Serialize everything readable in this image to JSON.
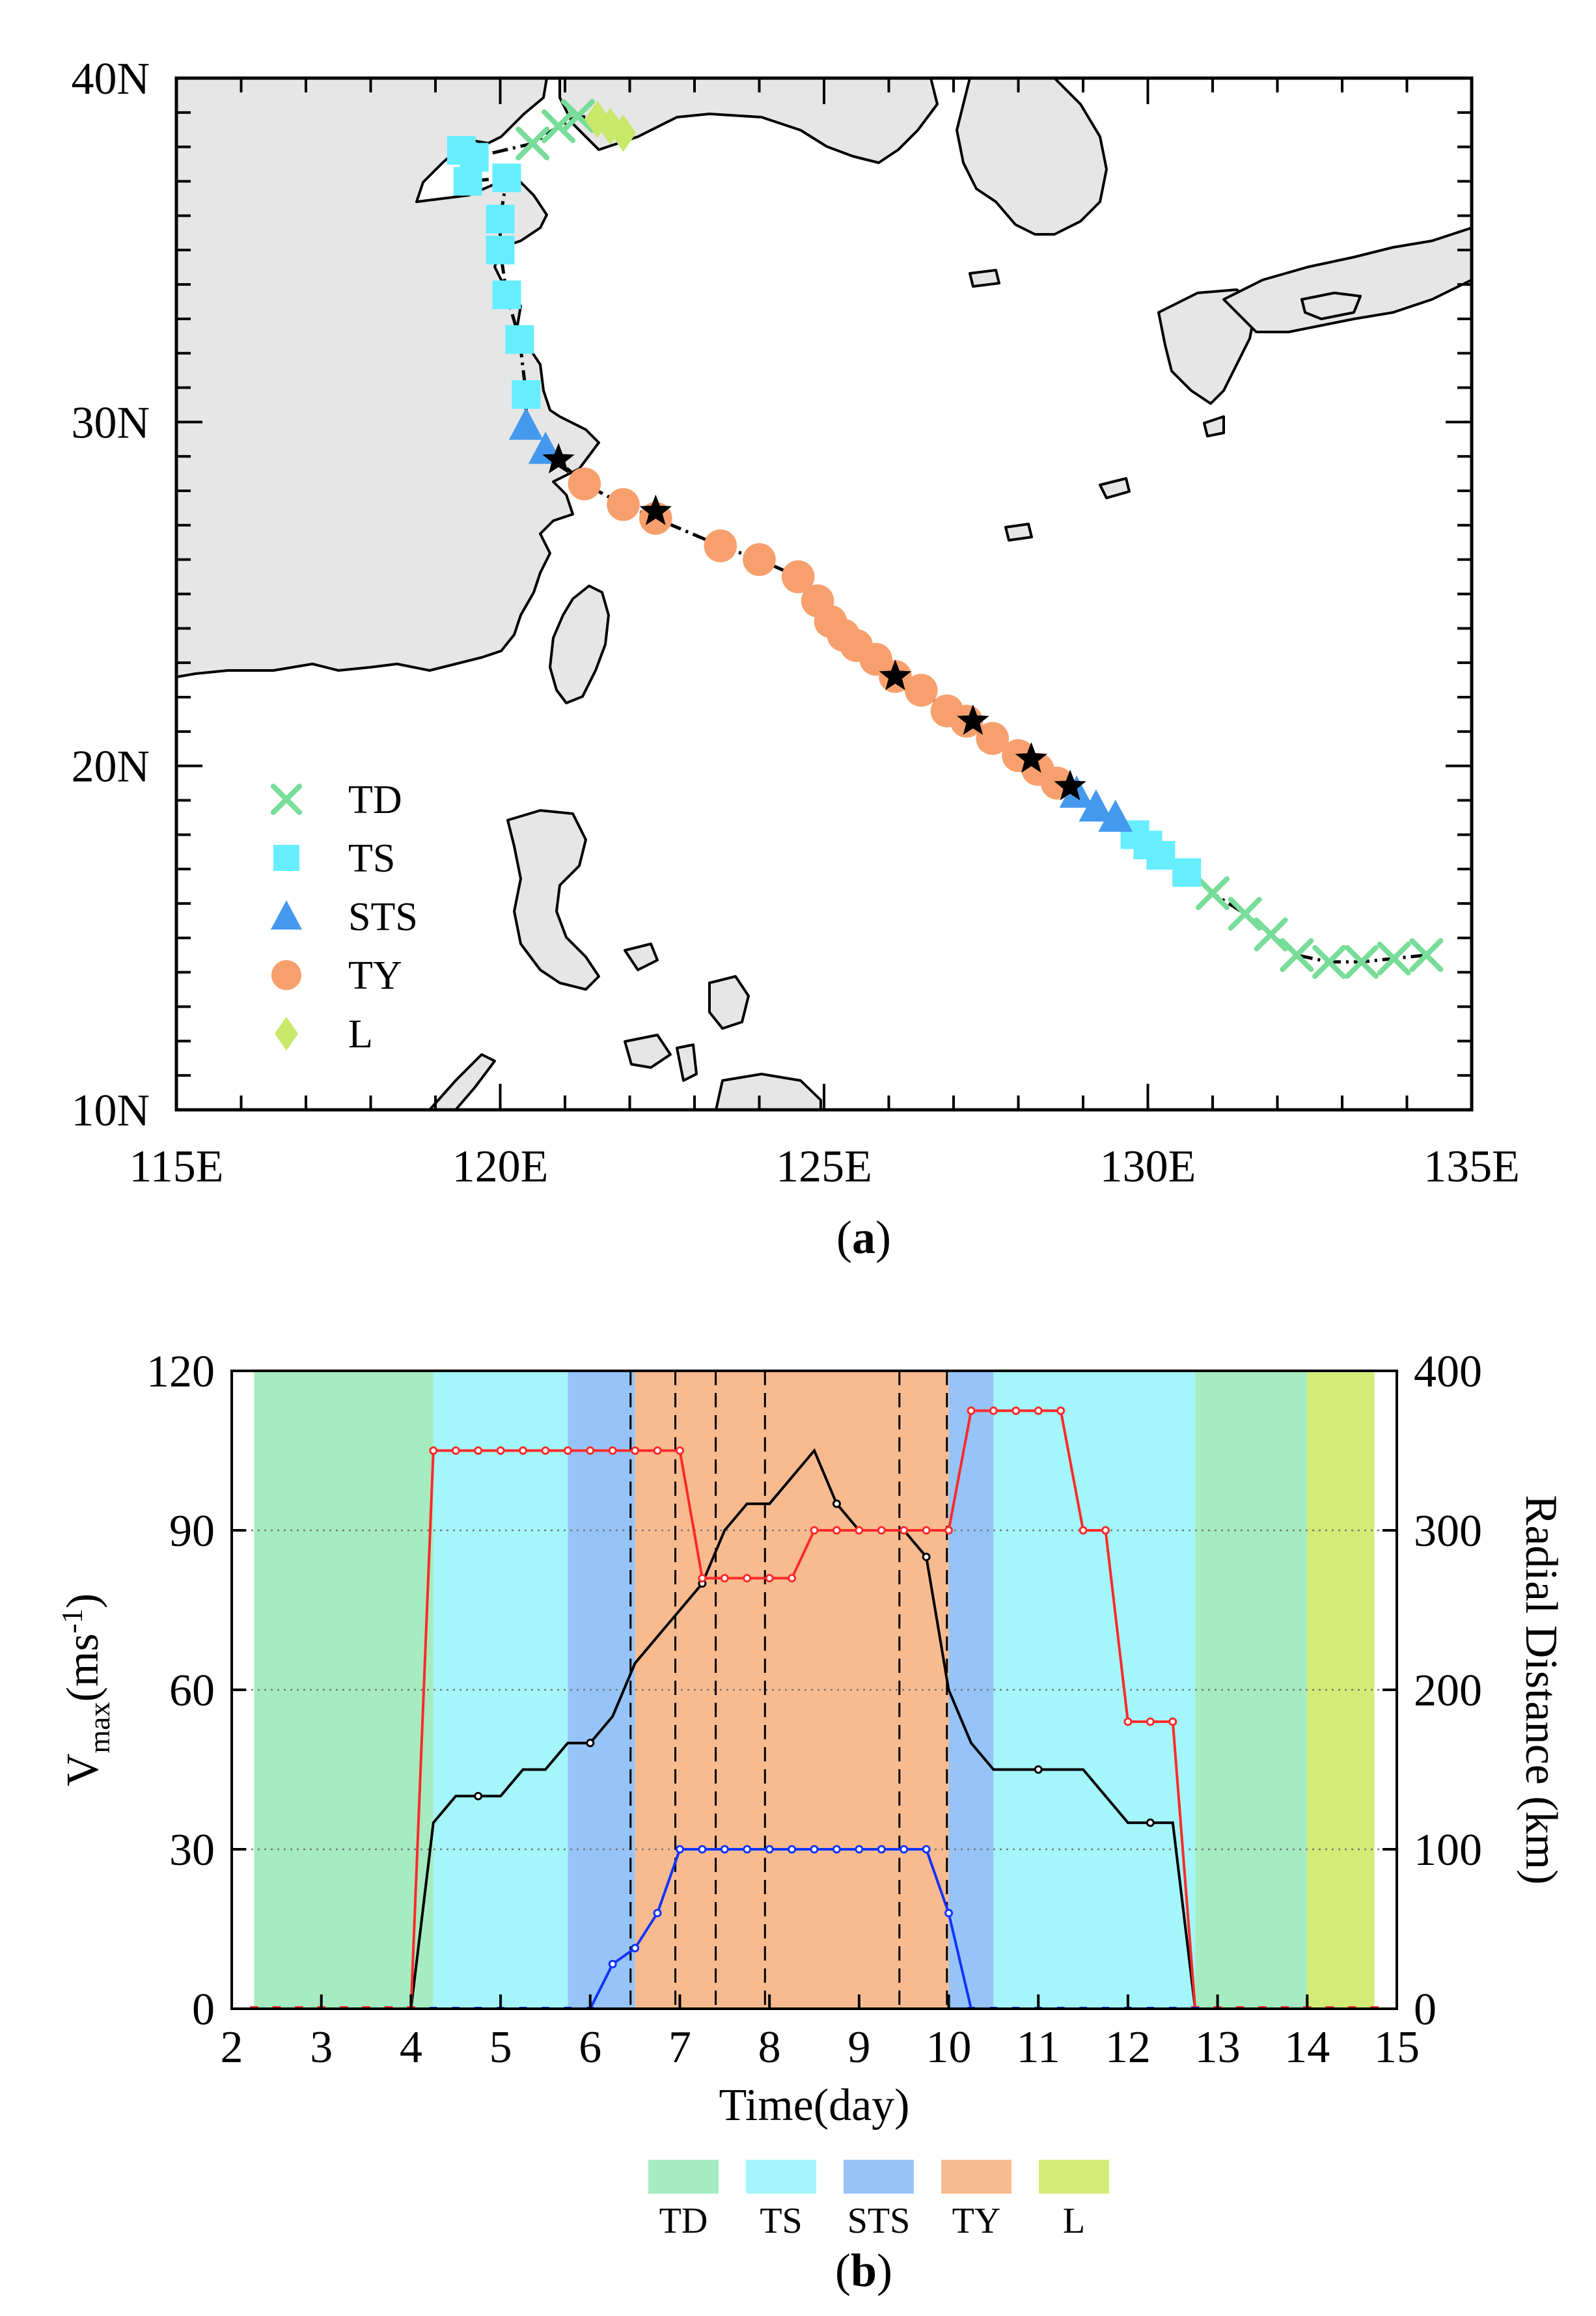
{
  "chart_data": [
    {
      "id": "a",
      "type": "scatter",
      "panel_label": "(a)",
      "panel_letter": "a",
      "title": "",
      "xlabel": "",
      "ylabel": "",
      "xlim": [
        115,
        135
      ],
      "ylim": [
        10,
        40
      ],
      "x_ticks": [
        115,
        120,
        125,
        130,
        135
      ],
      "x_tick_labels": [
        "115E",
        "120E",
        "125E",
        "130E",
        "135E"
      ],
      "y_ticks": [
        10,
        20,
        30,
        40
      ],
      "y_tick_labels": [
        "10N",
        "20N",
        "30N",
        "40N"
      ],
      "grid": false,
      "legend_position": "bottom-left",
      "legend": [
        {
          "label": "TD",
          "marker": "x",
          "color": "#77DD99"
        },
        {
          "label": "TS",
          "marker": "square",
          "color": "#66EEFF"
        },
        {
          "label": "STS",
          "marker": "triangle",
          "color": "#4499EE"
        },
        {
          "label": "TY",
          "marker": "circle",
          "color": "#F7A06E"
        },
        {
          "label": "L",
          "marker": "diamond",
          "color": "#C8E86A"
        }
      ],
      "land_color": "#E6E6E6",
      "track": [
        {
          "lon": 134.3,
          "lat": 14.5,
          "cat": "TD"
        },
        {
          "lon": 133.8,
          "lat": 14.4,
          "cat": "TD"
        },
        {
          "lon": 133.3,
          "lat": 14.3,
          "cat": "TD"
        },
        {
          "lon": 132.8,
          "lat": 14.3,
          "cat": "TD"
        },
        {
          "lon": 132.3,
          "lat": 14.5,
          "cat": "TD"
        },
        {
          "lon": 131.9,
          "lat": 15.1,
          "cat": "TD"
        },
        {
          "lon": 131.5,
          "lat": 15.7,
          "cat": "TD"
        },
        {
          "lon": 131.0,
          "lat": 16.3,
          "cat": "TD"
        },
        {
          "lon": 130.6,
          "lat": 16.9,
          "cat": "TS"
        },
        {
          "lon": 130.2,
          "lat": 17.4,
          "cat": "TS"
        },
        {
          "lon": 130.0,
          "lat": 17.7,
          "cat": "TS"
        },
        {
          "lon": 129.8,
          "lat": 18.0,
          "cat": "TS"
        },
        {
          "lon": 129.5,
          "lat": 18.5,
          "cat": "STS"
        },
        {
          "lon": 129.2,
          "lat": 18.8,
          "cat": "STS"
        },
        {
          "lon": 128.9,
          "lat": 19.2,
          "cat": "STS"
        },
        {
          "lon": 128.6,
          "lat": 19.5,
          "cat": "TY"
        },
        {
          "lon": 128.3,
          "lat": 19.9,
          "cat": "TY"
        },
        {
          "lon": 128.0,
          "lat": 20.3,
          "cat": "TY"
        },
        {
          "lon": 127.6,
          "lat": 20.8,
          "cat": "TY"
        },
        {
          "lon": 127.2,
          "lat": 21.3,
          "cat": "TY"
        },
        {
          "lon": 126.9,
          "lat": 21.6,
          "cat": "TY"
        },
        {
          "lon": 126.5,
          "lat": 22.2,
          "cat": "TY"
        },
        {
          "lon": 126.1,
          "lat": 22.6,
          "cat": "TY"
        },
        {
          "lon": 125.8,
          "lat": 23.1,
          "cat": "TY"
        },
        {
          "lon": 125.5,
          "lat": 23.5,
          "cat": "TY"
        },
        {
          "lon": 125.3,
          "lat": 23.8,
          "cat": "TY"
        },
        {
          "lon": 125.1,
          "lat": 24.2,
          "cat": "TY"
        },
        {
          "lon": 124.9,
          "lat": 24.8,
          "cat": "TY"
        },
        {
          "lon": 124.6,
          "lat": 25.5,
          "cat": "TY"
        },
        {
          "lon": 124.0,
          "lat": 26.0,
          "cat": "TY"
        },
        {
          "lon": 123.4,
          "lat": 26.4,
          "cat": "TY"
        },
        {
          "lon": 122.4,
          "lat": 27.2,
          "cat": "TY"
        },
        {
          "lon": 121.9,
          "lat": 27.6,
          "cat": "TY"
        },
        {
          "lon": 121.3,
          "lat": 28.2,
          "cat": "TY"
        },
        {
          "lon": 120.7,
          "lat": 29.2,
          "cat": "STS"
        },
        {
          "lon": 120.4,
          "lat": 29.9,
          "cat": "STS"
        },
        {
          "lon": 120.4,
          "lat": 30.8,
          "cat": "TS"
        },
        {
          "lon": 120.3,
          "lat": 32.4,
          "cat": "TS"
        },
        {
          "lon": 120.1,
          "lat": 33.7,
          "cat": "TS"
        },
        {
          "lon": 120.0,
          "lat": 35.0,
          "cat": "TS"
        },
        {
          "lon": 120.0,
          "lat": 35.9,
          "cat": "TS"
        },
        {
          "lon": 120.1,
          "lat": 37.1,
          "cat": "TS"
        },
        {
          "lon": 119.5,
          "lat": 37.0,
          "cat": "TS"
        },
        {
          "lon": 119.4,
          "lat": 37.9,
          "cat": "TS"
        },
        {
          "lon": 119.6,
          "lat": 37.7,
          "cat": "TS"
        },
        {
          "lon": 120.5,
          "lat": 38.1,
          "cat": "TD"
        },
        {
          "lon": 120.9,
          "lat": 38.6,
          "cat": "TD"
        },
        {
          "lon": 121.2,
          "lat": 38.9,
          "cat": "TD"
        },
        {
          "lon": 121.5,
          "lat": 38.8,
          "cat": "L"
        },
        {
          "lon": 121.7,
          "lat": 38.6,
          "cat": "L"
        },
        {
          "lon": 121.9,
          "lat": 38.4,
          "cat": "L"
        }
      ],
      "stars": [
        {
          "lon": 120.9,
          "lat": 28.9
        },
        {
          "lon": 122.4,
          "lat": 27.4
        },
        {
          "lon": 126.1,
          "lat": 22.6
        },
        {
          "lon": 127.3,
          "lat": 21.3
        },
        {
          "lon": 128.2,
          "lat": 20.2
        },
        {
          "lon": 128.8,
          "lat": 19.4
        }
      ]
    },
    {
      "id": "b",
      "type": "line",
      "panel_label": "(b)",
      "panel_letter": "b",
      "title": "",
      "xlabel": "Time(day)",
      "ylabel": "V",
      "ylabel_sub": "max",
      "ylabel_unit": "(ms",
      "ylabel_unit_sup": "-1",
      "ylabel_end": ")",
      "y2label": "Radial Distance (km)",
      "xlim": [
        2,
        15
      ],
      "ylim": [
        0,
        120
      ],
      "y2lim": [
        0,
        400
      ],
      "x_ticks": [
        2,
        3,
        4,
        5,
        6,
        7,
        8,
        9,
        10,
        11,
        12,
        13,
        14,
        15
      ],
      "y_ticks": [
        0,
        30,
        60,
        90,
        120
      ],
      "y2_ticks": [
        0,
        100,
        200,
        300,
        400
      ],
      "grid": "dotted horizontal at 30, 60, 90",
      "legend_position": "bottom-center",
      "phases": [
        {
          "label": "TD",
          "start": 2.25,
          "end": 4.25,
          "color": "#A6ECC0"
        },
        {
          "label": "TS",
          "start": 4.25,
          "end": 5.75,
          "color": "#A4F6FA"
        },
        {
          "label": "STS",
          "start": 5.75,
          "end": 6.5,
          "color": "#96C4F8"
        },
        {
          "label": "TY",
          "start": 6.5,
          "end": 10.0,
          "color": "#F8BB90"
        },
        {
          "label": "STS",
          "start": 10.0,
          "end": 10.5,
          "color": "#96C4F8"
        },
        {
          "label": "TS",
          "start": 10.5,
          "end": 12.75,
          "color": "#A4F6FA"
        },
        {
          "label": "TD",
          "start": 12.75,
          "end": 14.0,
          "color": "#A6ECC0"
        },
        {
          "label": "L",
          "start": 14.0,
          "end": 14.75,
          "color": "#D4EC76"
        }
      ],
      "dashed_lines": [
        6.45,
        6.95,
        7.4,
        7.95,
        9.45,
        9.98
      ],
      "legend": [
        {
          "label": "TD",
          "color": "#A6ECC0"
        },
        {
          "label": "TS",
          "color": "#A4F6FA"
        },
        {
          "label": "STS",
          "color": "#96C4F8"
        },
        {
          "label": "TY",
          "color": "#F8BB90"
        },
        {
          "label": "L",
          "color": "#D4EC76"
        }
      ],
      "series": [
        {
          "name": "Vmax",
          "axis": "left",
          "color": "#000000",
          "x": [
            4.0,
            4.25,
            4.5,
            4.75,
            5.0,
            5.25,
            5.5,
            5.75,
            6.0,
            6.25,
            6.5,
            6.75,
            7.0,
            7.25,
            7.5,
            7.75,
            8.0,
            8.25,
            8.5,
            8.75,
            9.0,
            9.25,
            9.5,
            9.75,
            10.0,
            10.25,
            10.5,
            10.75,
            11.0,
            11.25,
            11.5,
            11.75,
            12.0,
            12.25,
            12.5,
            12.75
          ],
          "y": [
            0,
            35,
            40,
            40,
            40,
            45,
            45,
            50,
            50,
            55,
            65,
            70,
            75,
            80,
            90,
            95,
            95,
            100,
            105,
            95,
            90,
            90,
            90,
            85,
            60,
            50,
            45,
            45,
            45,
            45,
            45,
            40,
            35,
            35,
            35,
            0
          ],
          "markers_x": [
            4.75,
            6.0,
            7.25,
            8.75,
            9.75,
            11.0,
            12.25
          ]
        },
        {
          "name": "Radial Distance (red)",
          "axis": "right",
          "color": "#FF2A2A",
          "x": [
            2.25,
            2.5,
            2.75,
            3.0,
            3.25,
            3.5,
            3.75,
            4.0,
            4.25,
            4.5,
            4.75,
            5.0,
            5.25,
            5.5,
            5.75,
            6.0,
            6.25,
            6.5,
            6.75,
            7.0,
            7.25,
            7.5,
            7.75,
            8.0,
            8.25,
            8.5,
            8.75,
            9.0,
            9.25,
            9.5,
            9.75,
            10.0,
            10.25,
            10.5,
            10.75,
            11.0,
            11.25,
            11.5,
            11.75,
            12.0,
            12.25,
            12.5,
            12.75,
            13.0,
            13.25,
            13.5,
            13.75,
            14.0,
            14.25,
            14.5,
            14.75
          ],
          "y": [
            0,
            0,
            0,
            0,
            0,
            0,
            0,
            0,
            350,
            350,
            350,
            350,
            350,
            350,
            350,
            350,
            350,
            350,
            350,
            350,
            270,
            270,
            270,
            270,
            270,
            300,
            300,
            300,
            300,
            300,
            300,
            300,
            375,
            375,
            375,
            375,
            375,
            300,
            300,
            180,
            180,
            180,
            0,
            0,
            0,
            0,
            0,
            0,
            0,
            0,
            0
          ]
        },
        {
          "name": "Radial Distance (blue)",
          "axis": "right",
          "color": "#1133FF",
          "x": [
            4.25,
            4.5,
            4.75,
            5.0,
            5.25,
            5.5,
            5.75,
            6.0,
            6.25,
            6.5,
            6.75,
            7.0,
            7.25,
            7.5,
            7.75,
            8.0,
            8.25,
            8.5,
            8.75,
            9.0,
            9.25,
            9.5,
            9.75,
            10.0,
            10.25,
            10.5,
            10.75,
            11.0,
            11.25,
            11.5,
            11.75,
            12.0,
            12.25,
            12.5,
            12.75
          ],
          "y": [
            0,
            0,
            0,
            0,
            0,
            0,
            0,
            0,
            28,
            38,
            60,
            100,
            100,
            100,
            100,
            100,
            100,
            100,
            100,
            100,
            100,
            100,
            100,
            60,
            0,
            0,
            0,
            0,
            0,
            0,
            0,
            0,
            0,
            0,
            0
          ]
        }
      ]
    }
  ]
}
